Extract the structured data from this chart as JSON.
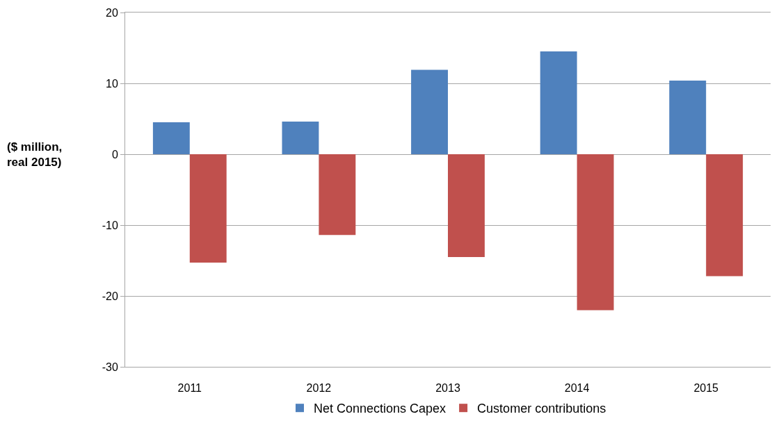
{
  "chart_data": {
    "type": "bar",
    "categories": [
      "2011",
      "2012",
      "2013",
      "2014",
      "2015"
    ],
    "series": [
      {
        "name": "Net Connections Capex",
        "color": "#4f81bd",
        "values": [
          4.5,
          4.6,
          11.9,
          14.5,
          10.4
        ]
      },
      {
        "name": "Customer contributions",
        "color": "#c0504d",
        "values": [
          -15.3,
          -11.4,
          -14.5,
          -22.0,
          -17.2
        ]
      }
    ],
    "ylabel": "($ million, real 2015)",
    "ylim": [
      -30,
      20
    ],
    "yticks": [
      -30,
      -20,
      -10,
      0,
      10,
      20
    ],
    "grid": "y",
    "legend": "bottom"
  }
}
